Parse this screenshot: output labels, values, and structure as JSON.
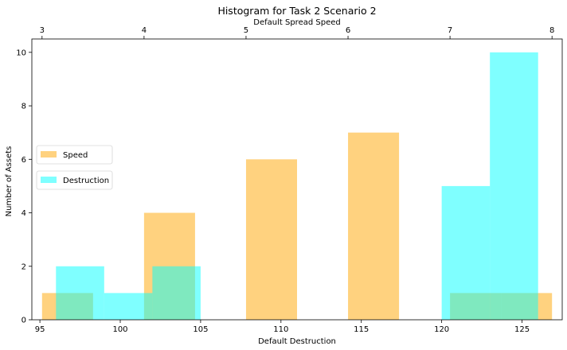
{
  "chart_data": {
    "type": "bar",
    "title": "Histogram for Task 2 Scenario 2",
    "xlabel": "Default Destruction",
    "ylabel": "Number of Assets",
    "top_xlabel": "Default Spread Speed",
    "xlim": [
      94.5,
      127.5
    ],
    "ylim": [
      0,
      10.5
    ],
    "top_xlim": [
      2.9,
      8.1
    ],
    "x_ticks": [
      "95",
      "100",
      "105",
      "110",
      "115",
      "120",
      "125"
    ],
    "y_ticks": [
      "0",
      "2",
      "4",
      "6",
      "8",
      "10"
    ],
    "top_ticks": [
      "3",
      "4",
      "5",
      "6",
      "7",
      "8"
    ],
    "grid": false,
    "legend_placement": "left",
    "series": [
      {
        "name": "Speed",
        "axis": "top",
        "color": "#ffa500",
        "opacity": 0.5,
        "bins": [
          {
            "x0": 3.0,
            "x1": 3.5,
            "count": 1
          },
          {
            "x0": 3.5,
            "x1": 4.0,
            "count": 0
          },
          {
            "x0": 4.0,
            "x1": 4.5,
            "count": 4
          },
          {
            "x0": 4.5,
            "x1": 5.0,
            "count": 0
          },
          {
            "x0": 5.0,
            "x1": 5.5,
            "count": 6
          },
          {
            "x0": 5.5,
            "x1": 6.0,
            "count": 0
          },
          {
            "x0": 6.0,
            "x1": 6.5,
            "count": 7
          },
          {
            "x0": 6.5,
            "x1": 7.0,
            "count": 0
          },
          {
            "x0": 7.0,
            "x1": 7.5,
            "count": 1
          },
          {
            "x0": 7.5,
            "x1": 8.0,
            "count": 1
          }
        ]
      },
      {
        "name": "Destruction",
        "axis": "bottom",
        "color": "#00ffff",
        "opacity": 0.5,
        "bins": [
          {
            "x0": 96,
            "x1": 99,
            "count": 2
          },
          {
            "x0": 99,
            "x1": 102,
            "count": 1
          },
          {
            "x0": 102,
            "x1": 105,
            "count": 2
          },
          {
            "x0": 105,
            "x1": 108,
            "count": 0
          },
          {
            "x0": 108,
            "x1": 111,
            "count": 0
          },
          {
            "x0": 111,
            "x1": 114,
            "count": 0
          },
          {
            "x0": 114,
            "x1": 117,
            "count": 0
          },
          {
            "x0": 117,
            "x1": 120,
            "count": 0
          },
          {
            "x0": 120,
            "x1": 123,
            "count": 5
          },
          {
            "x0": 123,
            "x1": 126,
            "count": 10
          }
        ]
      }
    ]
  }
}
